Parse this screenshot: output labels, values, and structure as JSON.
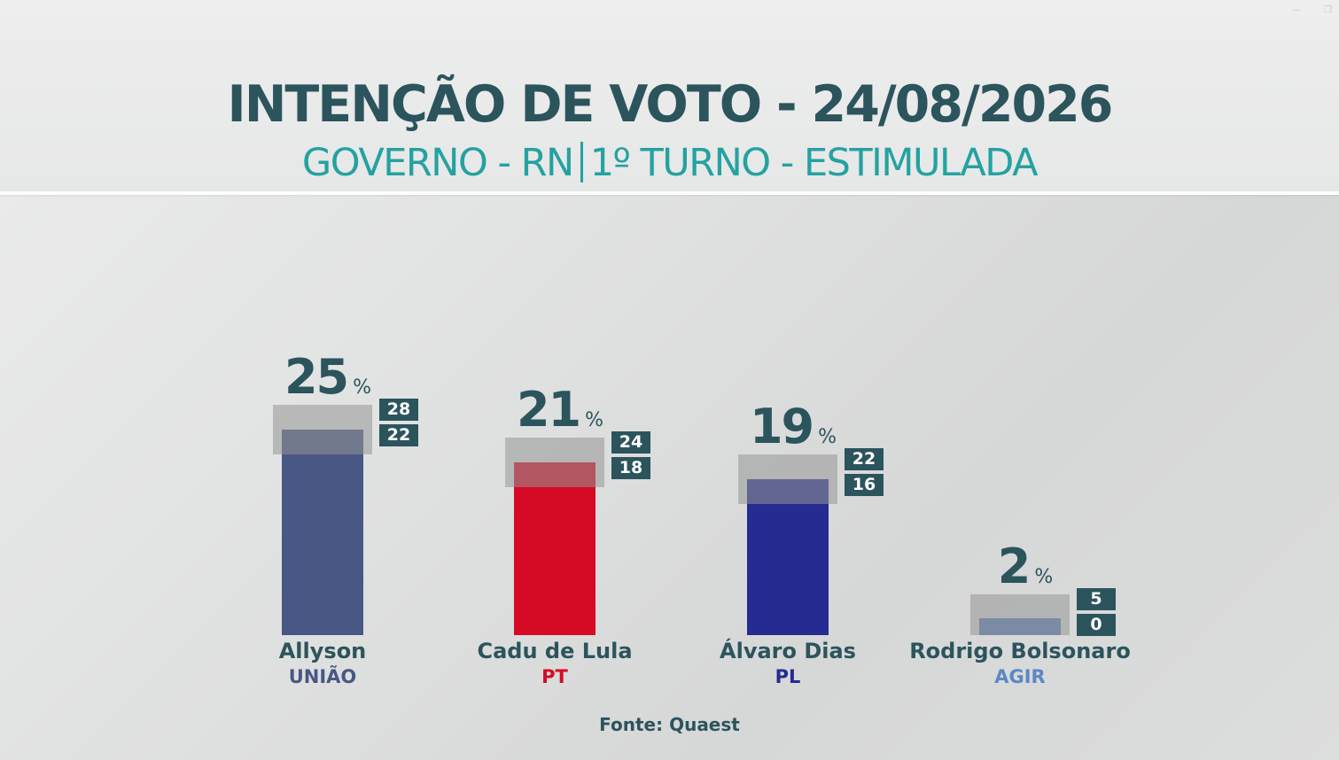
{
  "title": "INTENÇÃO DE VOTO - 24/08/2026",
  "subtitle_left": "GOVERNO - RN",
  "subtitle_right": "1º TURNO - ESTIMULADA",
  "source": "Fonte: Quaest",
  "percent_symbol": "%",
  "chart_data": {
    "type": "bar",
    "title": "INTENÇÃO DE VOTO - 24/08/2026",
    "subtitle": "GOVERNO - RN | 1º TURNO - ESTIMULADA",
    "ylim": [
      0,
      25
    ],
    "unit": "%",
    "grid": false,
    "categories": [
      "Allyson",
      "Cadu de Lula",
      "Álvaro Dias",
      "Rodrigo Bolsonaro"
    ],
    "parties": [
      "UNIÃO",
      "PT",
      "PL",
      "AGIR"
    ],
    "values": [
      25,
      21,
      19,
      2
    ],
    "ci_upper": [
      28,
      24,
      22,
      5
    ],
    "ci_lower": [
      22,
      18,
      16,
      0
    ],
    "colors": [
      "#485783",
      "#d50a24",
      "#262b91",
      "#5c7fb9"
    ],
    "party_colors": [
      "#485783",
      "#d50a24",
      "#262b91",
      "#5c87c4"
    ]
  }
}
